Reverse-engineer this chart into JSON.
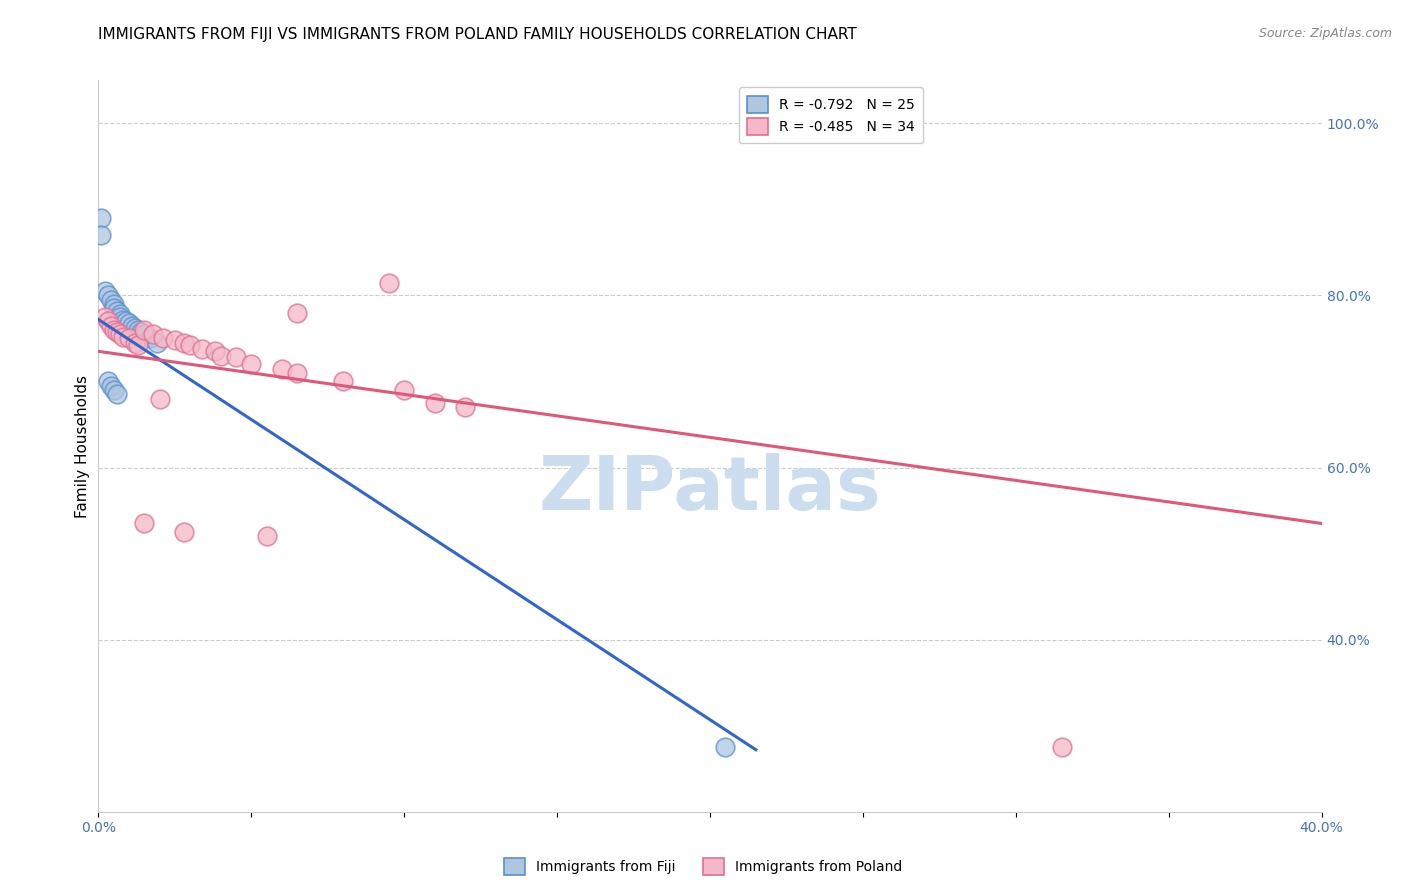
{
  "title": "IMMIGRANTS FROM FIJI VS IMMIGRANTS FROM POLAND FAMILY HOUSEHOLDS CORRELATION CHART",
  "source": "Source: ZipAtlas.com",
  "ylabel": "Family Households",
  "fiji_label": "Immigrants from Fiji",
  "poland_label": "Immigrants from Poland",
  "fiji_R": -0.792,
  "fiji_N": 25,
  "poland_R": -0.485,
  "poland_N": 34,
  "fiji_color": "#aec6e0",
  "fiji_edge_color": "#5a8fd0",
  "fiji_line_color": "#3366cc",
  "poland_color": "#f5b8c8",
  "poland_edge_color": "#e07090",
  "poland_line_color": "#e05878",
  "watermark_text": "ZIPatlas",
  "watermark_color": "#ccddef",
  "xlim": [
    0.0,
    0.4
  ],
  "ylim": [
    0.2,
    1.05
  ],
  "xtick_positions": [
    0.0,
    0.05,
    0.1,
    0.15,
    0.2,
    0.25,
    0.3,
    0.35,
    0.4
  ],
  "xtick_labels_show": {
    "0.0": "0.0%",
    "0.4": "40.0%"
  },
  "yticks_right": [
    0.4,
    0.6,
    0.8,
    1.0
  ],
  "right_axis_color": "#4472c4",
  "fiji_scatter": [
    [
      0.001,
      0.89
    ],
    [
      0.002,
      0.805
    ],
    [
      0.003,
      0.8
    ],
    [
      0.004,
      0.795
    ],
    [
      0.005,
      0.79
    ],
    [
      0.005,
      0.785
    ],
    [
      0.006,
      0.782
    ],
    [
      0.007,
      0.778
    ],
    [
      0.007,
      0.775
    ],
    [
      0.008,
      0.772
    ],
    [
      0.009,
      0.77
    ],
    [
      0.01,
      0.768
    ],
    [
      0.011,
      0.765
    ],
    [
      0.012,
      0.762
    ],
    [
      0.013,
      0.76
    ],
    [
      0.014,
      0.758
    ],
    [
      0.015,
      0.755
    ],
    [
      0.017,
      0.75
    ],
    [
      0.019,
      0.745
    ],
    [
      0.003,
      0.7
    ],
    [
      0.004,
      0.695
    ],
    [
      0.005,
      0.69
    ],
    [
      0.006,
      0.685
    ],
    [
      0.205,
      0.275
    ],
    [
      0.001,
      0.87
    ]
  ],
  "poland_scatter": [
    [
      0.002,
      0.775
    ],
    [
      0.003,
      0.77
    ],
    [
      0.004,
      0.765
    ],
    [
      0.005,
      0.76
    ],
    [
      0.006,
      0.757
    ],
    [
      0.007,
      0.755
    ],
    [
      0.008,
      0.752
    ],
    [
      0.01,
      0.75
    ],
    [
      0.012,
      0.745
    ],
    [
      0.013,
      0.742
    ],
    [
      0.015,
      0.76
    ],
    [
      0.018,
      0.755
    ],
    [
      0.021,
      0.75
    ],
    [
      0.025,
      0.748
    ],
    [
      0.028,
      0.745
    ],
    [
      0.03,
      0.742
    ],
    [
      0.034,
      0.738
    ],
    [
      0.038,
      0.735
    ],
    [
      0.04,
      0.73
    ],
    [
      0.045,
      0.728
    ],
    [
      0.05,
      0.72
    ],
    [
      0.06,
      0.715
    ],
    [
      0.065,
      0.71
    ],
    [
      0.08,
      0.7
    ],
    [
      0.1,
      0.69
    ],
    [
      0.11,
      0.675
    ],
    [
      0.12,
      0.67
    ],
    [
      0.015,
      0.535
    ],
    [
      0.028,
      0.525
    ],
    [
      0.095,
      0.815
    ],
    [
      0.065,
      0.78
    ],
    [
      0.02,
      0.68
    ],
    [
      0.055,
      0.52
    ],
    [
      0.315,
      0.275
    ]
  ],
  "fiji_line_x": [
    0.0,
    0.215
  ],
  "fiji_line_y": [
    0.772,
    0.272
  ],
  "poland_line_x": [
    0.0,
    0.4
  ],
  "poland_line_y": [
    0.735,
    0.535
  ],
  "background_color": "#ffffff",
  "grid_color": "#cccccc",
  "title_fontsize": 11,
  "axis_label_fontsize": 11,
  "tick_fontsize": 10,
  "legend_fontsize": 10,
  "marker_size": 180
}
